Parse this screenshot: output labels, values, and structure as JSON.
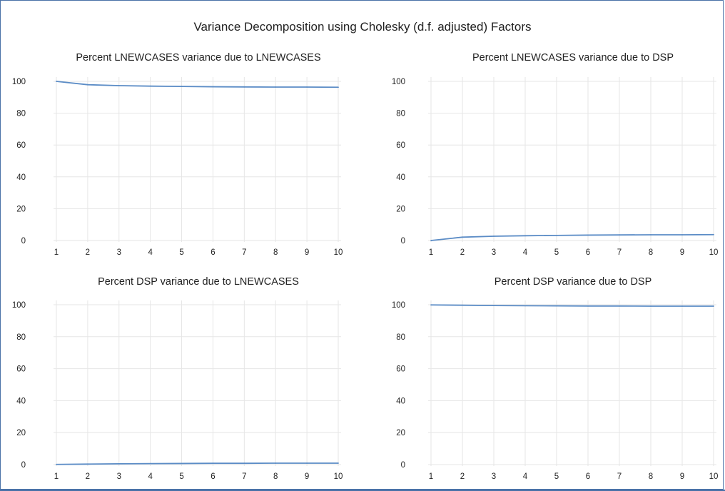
{
  "title": "Variance Decomposition using Cholesky (d.f. adjusted) Factors",
  "colors": {
    "line": "#5b8cc6",
    "grid": "#e6e6e6",
    "frame": "#4a72a8",
    "text": "#222222"
  },
  "chart_data": [
    {
      "type": "line",
      "title": "Percent LNEWCASES variance due to LNEWCASES",
      "x": [
        1,
        2,
        3,
        4,
        5,
        6,
        7,
        8,
        9,
        10
      ],
      "xlabel": "",
      "ylabel": "",
      "ylim": [
        0,
        100
      ],
      "xticks": [
        1,
        2,
        3,
        4,
        5,
        6,
        7,
        8,
        9,
        10
      ],
      "yticks": [
        0,
        20,
        40,
        60,
        80,
        100
      ],
      "grid": true,
      "series": [
        {
          "values": [
            100,
            97.9,
            97.3,
            97.0,
            96.8,
            96.6,
            96.5,
            96.4,
            96.4,
            96.3
          ]
        }
      ]
    },
    {
      "type": "line",
      "title": "Percent LNEWCASES variance due to DSP",
      "x": [
        1,
        2,
        3,
        4,
        5,
        6,
        7,
        8,
        9,
        10
      ],
      "xlabel": "",
      "ylabel": "",
      "ylim": [
        0,
        100
      ],
      "xticks": [
        1,
        2,
        3,
        4,
        5,
        6,
        7,
        8,
        9,
        10
      ],
      "yticks": [
        0,
        20,
        40,
        60,
        80,
        100
      ],
      "grid": true,
      "series": [
        {
          "values": [
            0,
            2.1,
            2.7,
            3.0,
            3.2,
            3.4,
            3.5,
            3.6,
            3.6,
            3.7
          ]
        }
      ]
    },
    {
      "type": "line",
      "title": "Percent DSP variance due to LNEWCASES",
      "x": [
        1,
        2,
        3,
        4,
        5,
        6,
        7,
        8,
        9,
        10
      ],
      "xlabel": "",
      "ylabel": "",
      "ylim": [
        0,
        100
      ],
      "xticks": [
        1,
        2,
        3,
        4,
        5,
        6,
        7,
        8,
        9,
        10
      ],
      "yticks": [
        0,
        20,
        40,
        60,
        80,
        100
      ],
      "grid": true,
      "series": [
        {
          "values": [
            0.1,
            0.3,
            0.5,
            0.6,
            0.7,
            0.8,
            0.8,
            0.9,
            0.9,
            0.9
          ]
        }
      ]
    },
    {
      "type": "line",
      "title": "Percent DSP variance due to DSP",
      "x": [
        1,
        2,
        3,
        4,
        5,
        6,
        7,
        8,
        9,
        10
      ],
      "xlabel": "",
      "ylabel": "",
      "ylim": [
        0,
        100
      ],
      "xticks": [
        1,
        2,
        3,
        4,
        5,
        6,
        7,
        8,
        9,
        10
      ],
      "yticks": [
        0,
        20,
        40,
        60,
        80,
        100
      ],
      "grid": true,
      "series": [
        {
          "values": [
            99.9,
            99.7,
            99.5,
            99.4,
            99.3,
            99.2,
            99.2,
            99.1,
            99.1,
            99.1
          ]
        }
      ]
    }
  ]
}
